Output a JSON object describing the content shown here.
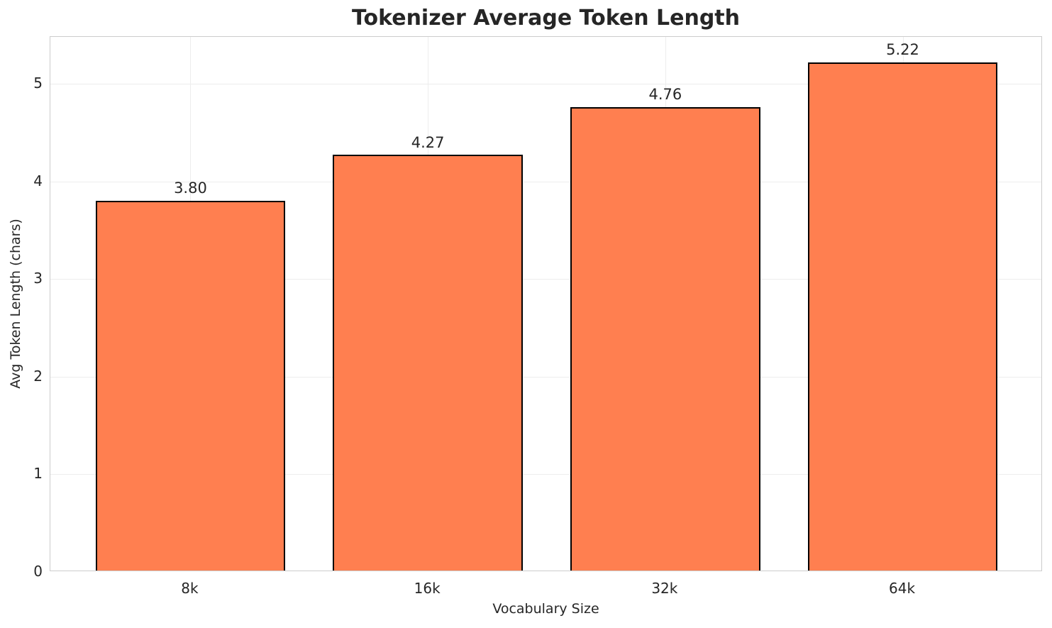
{
  "chart_data": {
    "type": "bar",
    "title": "Tokenizer Average Token Length",
    "xlabel": "Vocabulary Size",
    "ylabel": "Avg Token Length (chars)",
    "categories": [
      "8k",
      "16k",
      "32k",
      "64k"
    ],
    "values": [
      3.8,
      4.27,
      4.76,
      5.22
    ],
    "value_labels": [
      "3.80",
      "4.27",
      "4.76",
      "5.22"
    ],
    "yticks": [
      0,
      1,
      2,
      3,
      4,
      5
    ],
    "ytick_labels": [
      "0",
      "1",
      "2",
      "3",
      "4",
      "5"
    ],
    "ylim": [
      0,
      5.48
    ],
    "xlim": [
      -0.59,
      3.59
    ],
    "bar_width": 0.8,
    "grid": "both",
    "legend": "none",
    "colors": {
      "bar_fill": "#FF7F50",
      "bar_edge": "#000000",
      "grid": "#ededed",
      "spine": "#cccccc",
      "text": "#262626"
    }
  }
}
